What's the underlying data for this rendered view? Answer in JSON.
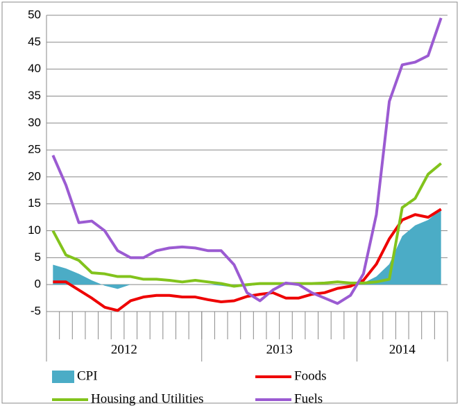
{
  "chart_data": {
    "type": "line",
    "categories": [
      null,
      null,
      null,
      null,
      null,
      null,
      null,
      null,
      null,
      null,
      null,
      null,
      null,
      null,
      null,
      null,
      null,
      null,
      null,
      null,
      null,
      null,
      null,
      null,
      null,
      null,
      null,
      null,
      null,
      null,
      null
    ],
    "year_groups": [
      {
        "label": "2012",
        "span": 12
      },
      {
        "label": "2013",
        "span": 12
      },
      {
        "label": "2014",
        "span": 7
      }
    ],
    "ylim": [
      -5,
      50
    ],
    "yticks": [
      -5,
      0,
      5,
      10,
      15,
      20,
      25,
      30,
      35,
      40,
      45,
      50
    ],
    "grid": true,
    "series": [
      {
        "name": "CPI",
        "kind": "area",
        "color": "#4bacc6",
        "values": [
          3.7,
          3,
          2,
          0.8,
          -0.2,
          -0.8,
          0,
          0,
          0,
          0,
          0,
          0,
          0,
          -0.2,
          -0.5,
          -0.3,
          0,
          0,
          0,
          0,
          0,
          0,
          0,
          0,
          0.3,
          1.5,
          3.8,
          9,
          11,
          12,
          14
        ]
      },
      {
        "name": "Foods",
        "kind": "line",
        "color": "#ee0000",
        "values": [
          0.5,
          0.5,
          -1,
          -2.5,
          -4.2,
          -4.8,
          -3,
          -2.3,
          -2,
          -2,
          -2.3,
          -2.3,
          -2.8,
          -3.2,
          -3,
          -2.2,
          -1.8,
          -1.5,
          -2.5,
          -2.5,
          -1.8,
          -1.5,
          -0.7,
          -0.3,
          0.8,
          3.8,
          8.5,
          12,
          13,
          12.5,
          14
        ]
      },
      {
        "name": "Housing and Utilities",
        "kind": "line",
        "color": "#82c31c",
        "values": [
          10,
          5.5,
          4.5,
          2.2,
          2,
          1.5,
          1.5,
          1,
          1,
          0.8,
          0.5,
          0.8,
          0.5,
          0.2,
          -0.3,
          0,
          0.2,
          0.2,
          0.2,
          0.2,
          0.2,
          0.3,
          0.5,
          0.3,
          0.3,
          0.5,
          1,
          14.3,
          16,
          20.5,
          22.5
        ]
      },
      {
        "name": "Fuels",
        "kind": "line",
        "color": "#9b5bd2",
        "values": [
          24,
          18.5,
          11.5,
          11.8,
          10,
          6.3,
          5,
          5,
          6.3,
          6.8,
          7,
          6.8,
          6.3,
          6.3,
          3.7,
          -1.5,
          -3,
          -1,
          0.3,
          0,
          -1.5,
          -2.5,
          -3.5,
          -2,
          2,
          13,
          34,
          40.8,
          41.3,
          42.5,
          49.5
        ]
      }
    ]
  }
}
